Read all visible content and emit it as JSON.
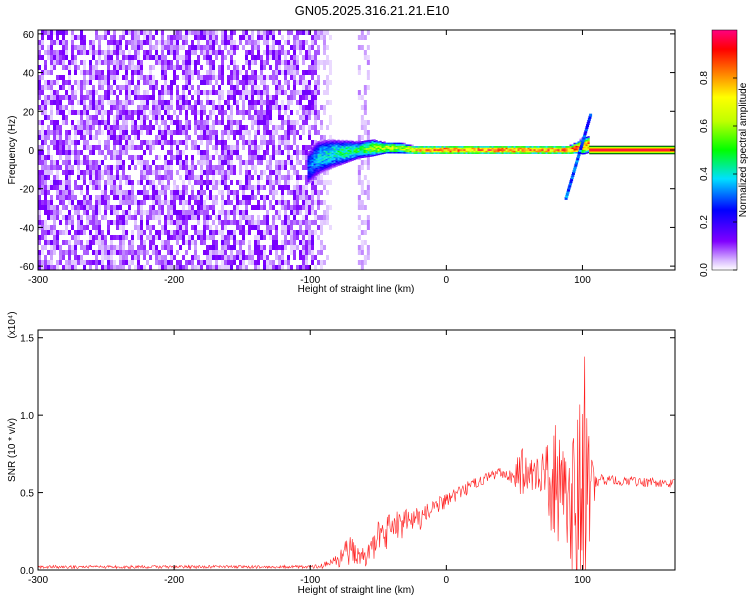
{
  "title": "GN05.2025.316.21.21.E10",
  "chart_data": [
    {
      "type": "heatmap",
      "xlabel": "Height of straight line (km)",
      "ylabel": "Frequency (Hz)",
      "xlim": [
        -300,
        168
      ],
      "ylim": [
        -62,
        62
      ],
      "xticks": [
        -300,
        -200,
        -100,
        0,
        100
      ],
      "yticks": [
        -60,
        -40,
        -20,
        0,
        20,
        40,
        60
      ],
      "colorbar": {
        "label": "Normalized spectral amplitude",
        "range": [
          0,
          1
        ],
        "ticks": [
          0.0,
          0.2,
          0.4,
          0.6,
          0.8
        ],
        "colormap": [
          "#ffffff",
          "#c8a0ff",
          "#8000ff",
          "#0000ff",
          "#00e0ff",
          "#00ff00",
          "#ffff00",
          "#ff8000",
          "#ff0000",
          "#ff0080"
        ]
      },
      "noise_region": {
        "x": [
          -300,
          -92
        ],
        "amplitude": [
          0.03,
          0.12
        ]
      },
      "sparse_band": {
        "x": [
          -65,
          -58
        ]
      },
      "signal_track": {
        "x": [
          -102,
          -95,
          -85,
          -75,
          -65,
          -55,
          -45,
          -35,
          -25,
          -15,
          0,
          20,
          40,
          60,
          80,
          90,
          95,
          100,
          105
        ],
        "frequency": [
          -9,
          -4,
          -2,
          -1,
          0,
          1,
          1,
          1,
          0,
          0,
          0,
          0,
          0,
          0,
          0,
          0,
          1,
          2,
          3
        ],
        "half_width": [
          6,
          6,
          5,
          4,
          3,
          3,
          2,
          2,
          1.5,
          1.5,
          1.5,
          1.5,
          1.5,
          1.5,
          1.5,
          1.5,
          2,
          3,
          3
        ],
        "amplitude": [
          0.3,
          0.4,
          0.45,
          0.5,
          0.5,
          0.6,
          0.7,
          0.6,
          0.8,
          0.85,
          0.9,
          0.9,
          0.9,
          0.9,
          0.85,
          0.9,
          0.9,
          0.8,
          0.9
        ]
      },
      "chirp": {
        "x": [
          88,
          106
        ],
        "frequency": [
          -25,
          18
        ]
      },
      "reference_band": {
        "x": [
          105,
          168
        ],
        "frequency": [
          -2,
          2
        ]
      }
    },
    {
      "type": "line",
      "xlabel": "Height of straight line (km)",
      "ylabel": "SNR (10 * v/v)",
      "scale_label": "(x10⁴)",
      "xlim": [
        -300,
        168
      ],
      "ylim": [
        0,
        1.55
      ],
      "xticks": [
        -300,
        -200,
        -100,
        0,
        100
      ],
      "yticks": [
        "0.0",
        "0.5",
        "1.0",
        "1.5"
      ],
      "color": "#ff2020",
      "series": [
        {
          "x": [
            -300,
            -250,
            -200,
            -150,
            -100,
            -90,
            -80,
            -75,
            -70,
            -65,
            -60,
            -55,
            -50,
            -40,
            -30,
            -20,
            -10,
            0,
            10,
            20,
            30,
            40,
            50,
            55,
            60,
            70,
            75,
            80,
            85,
            90,
            95,
            100,
            105,
            110,
            120,
            140,
            168
          ],
          "y": [
            0.02,
            0.02,
            0.02,
            0.02,
            0.02,
            0.03,
            0.05,
            0.1,
            0.14,
            0.1,
            0.08,
            0.15,
            0.2,
            0.26,
            0.3,
            0.33,
            0.4,
            0.44,
            0.5,
            0.55,
            0.6,
            0.63,
            0.6,
            0.65,
            0.63,
            0.6,
            0.58,
            0.55,
            0.5,
            0.45,
            0.45,
            0.45,
            0.5,
            0.58,
            0.58,
            0.57,
            0.56
          ],
          "spread": [
            0.01,
            0.01,
            0.01,
            0.01,
            0.01,
            0.02,
            0.05,
            0.08,
            0.1,
            0.06,
            0.06,
            0.1,
            0.12,
            0.12,
            0.1,
            0.08,
            0.06,
            0.05,
            0.05,
            0.04,
            0.03,
            0.03,
            0.05,
            0.2,
            0.1,
            0.12,
            0.35,
            0.4,
            0.3,
            0.45,
            0.55,
            0.7,
            0.4,
            0.04,
            0.03,
            0.03,
            0.03
          ]
        }
      ]
    }
  ]
}
